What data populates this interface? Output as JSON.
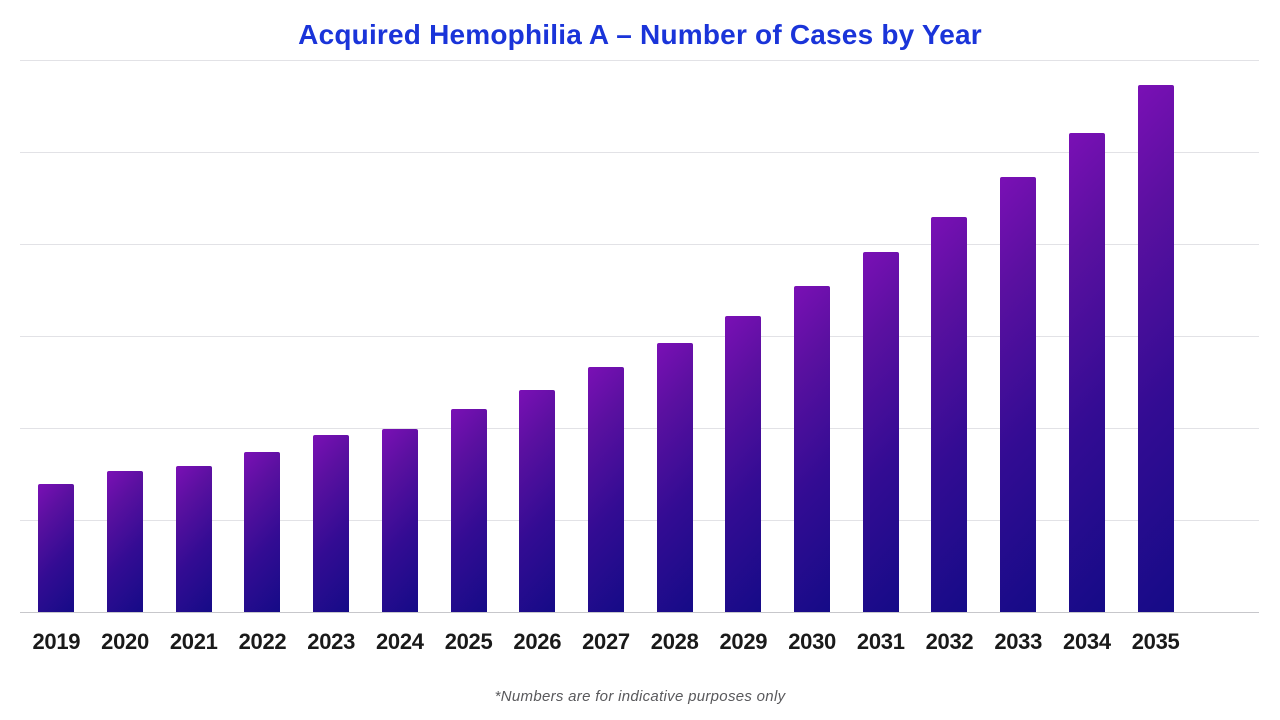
{
  "title": {
    "text": "Acquired Hemophilia A – Number of Cases by Year",
    "color": "#1a34d9"
  },
  "footnote": {
    "text": "*Numbers are for indicative purposes only",
    "color": "#59595c"
  },
  "chart_data": {
    "type": "bar",
    "title": "Acquired Hemophilia A – Number of Cases by Year",
    "categories": [
      "2019",
      "2020",
      "2021",
      "2022",
      "2023",
      "2024",
      "2025",
      "2026",
      "2027",
      "2028",
      "2029",
      "2030",
      "2031",
      "2032",
      "2033",
      "2034",
      "2035"
    ],
    "values": [
      24.3,
      26.8,
      27.7,
      30.4,
      33.6,
      34.7,
      38.5,
      42.1,
      46.5,
      51.0,
      56.2,
      61.9,
      68.3,
      75.0,
      82.5,
      90.9,
      100
    ],
    "value_unit": "relative index, tallest bar (2035) = 100; chart shows no numeric y-axis labels",
    "xlabel": "",
    "ylabel": "",
    "ylim": [
      0,
      104.8
    ],
    "grid": "horizontal",
    "gridline_count": 7,
    "legend": "none",
    "bar_gradient": [
      "#7a10b5",
      "#330c93",
      "#150b87"
    ],
    "annotations": [
      "*Numbers are for indicative purposes only"
    ]
  }
}
